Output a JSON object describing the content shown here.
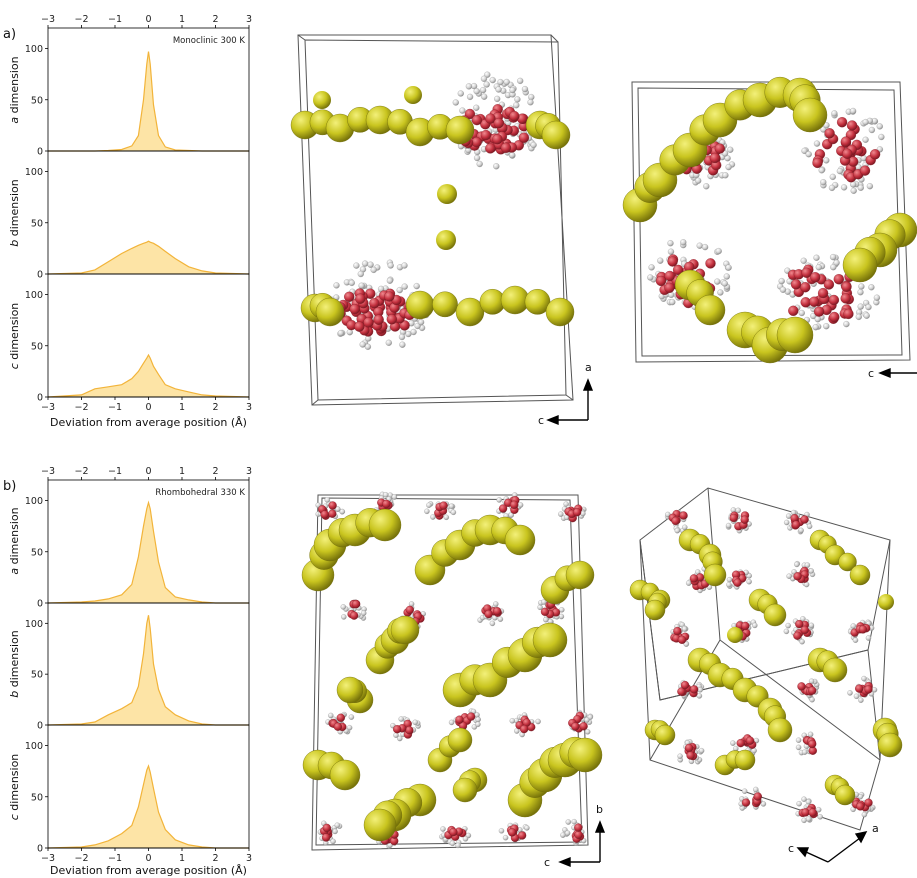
{
  "colors": {
    "fill": "#fde4a6",
    "line": "#f2b43a",
    "yellow": "#c9c51f",
    "red": "#c4313f",
    "grey": "#cfcfcf",
    "box": "#555555"
  },
  "chart_data": [
    {
      "type": "area",
      "panel": "a)",
      "annotation": "Monoclinic 300 K",
      "x": [
        -3,
        -2,
        -1.6,
        -1.2,
        -0.8,
        -0.5,
        -0.3,
        -0.15,
        -0.05,
        0,
        0.05,
        0.15,
        0.3,
        0.5,
        0.8,
        1.2,
        1.6,
        2,
        3
      ],
      "xlabel": "Deviation from average position (Å)",
      "xlim": [
        -3,
        3
      ],
      "xticks": [
        -3,
        -2,
        -1,
        0,
        1,
        2,
        3
      ],
      "ylim": [
        0,
        120
      ],
      "yticks": [
        0,
        50,
        100
      ],
      "series": [
        {
          "ylabel": "a dimension",
          "values": [
            0,
            0,
            0,
            0.5,
            1.5,
            5,
            15,
            50,
            85,
            97,
            85,
            45,
            15,
            4,
            1,
            0.5,
            0,
            0,
            0
          ]
        },
        {
          "ylabel": "b dimension",
          "values": [
            0,
            1,
            4,
            12,
            20,
            25,
            28,
            30,
            31,
            32,
            31,
            30,
            27,
            22,
            15,
            7,
            3,
            1,
            0
          ]
        },
        {
          "ylabel": "c dimension",
          "values": [
            0,
            2,
            8,
            10,
            12,
            18,
            25,
            33,
            38,
            41,
            38,
            30,
            22,
            12,
            8,
            5,
            2,
            1,
            0
          ]
        }
      ]
    },
    {
      "type": "area",
      "panel": "b)",
      "annotation": "Rhombohedral 330 K",
      "x": [
        -3,
        -2,
        -1.6,
        -1.2,
        -0.8,
        -0.5,
        -0.3,
        -0.15,
        -0.05,
        0,
        0.05,
        0.15,
        0.3,
        0.5,
        0.8,
        1.2,
        1.6,
        2,
        3
      ],
      "xlabel": "Deviation from average position (Å)",
      "xlim": [
        -3,
        3
      ],
      "xticks": [
        -3,
        -2,
        -1,
        0,
        1,
        2,
        3
      ],
      "ylim": [
        0,
        120
      ],
      "yticks": [
        0,
        50,
        100
      ],
      "series": [
        {
          "ylabel": "a dimension",
          "values": [
            0,
            1,
            2,
            4,
            8,
            18,
            45,
            75,
            92,
            98,
            92,
            70,
            40,
            15,
            6,
            3,
            1,
            0,
            0
          ]
        },
        {
          "ylabel": "b dimension",
          "values": [
            0,
            1,
            3,
            10,
            16,
            22,
            38,
            70,
            100,
            108,
            95,
            60,
            35,
            18,
            10,
            4,
            1,
            0,
            0
          ]
        },
        {
          "ylabel": "c dimension",
          "values": [
            0,
            1,
            3,
            7,
            14,
            22,
            40,
            62,
            76,
            80,
            74,
            58,
            35,
            18,
            8,
            3,
            1,
            0,
            0
          ]
        }
      ]
    }
  ],
  "structures": [
    {
      "axes": [
        "c",
        "a"
      ]
    },
    {
      "axes": [
        "c"
      ]
    },
    {
      "axes": [
        "c",
        "b"
      ]
    },
    {
      "axes": [
        "c",
        "a"
      ]
    }
  ]
}
